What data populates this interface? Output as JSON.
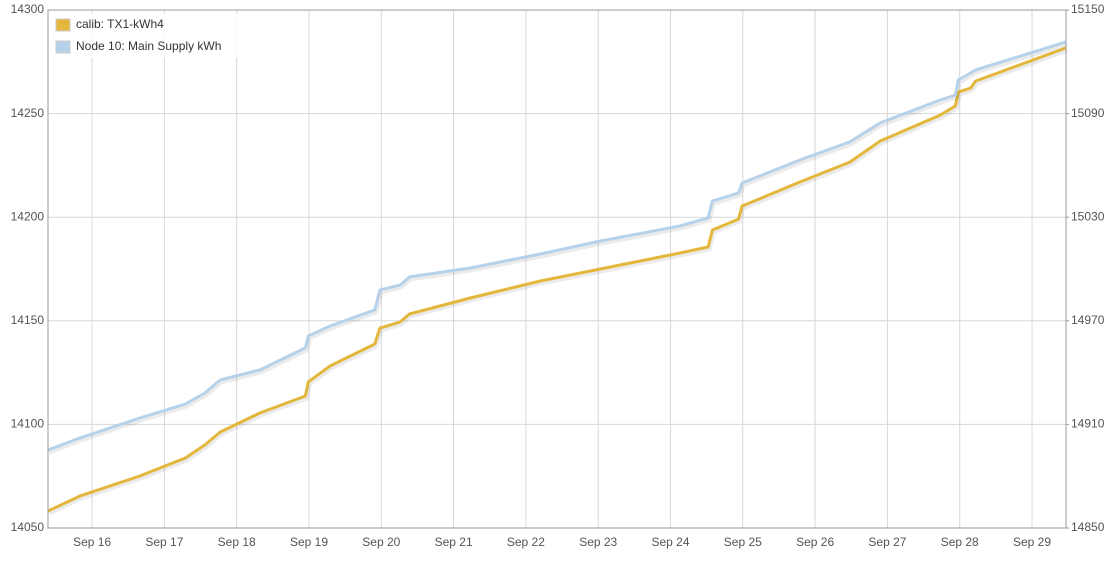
{
  "chart_data": {
    "type": "line",
    "x": [
      15.39,
      15.83,
      16.66,
      17.29,
      17.56,
      17.77,
      18.32,
      18.95,
      18.99,
      19.29,
      19.91,
      19.98,
      20.26,
      20.39,
      21.23,
      22.2,
      23.03,
      24.13,
      24.52,
      24.58,
      24.94,
      24.99,
      25.79,
      26.48,
      26.9,
      27.73,
      27.94,
      27.98,
      28.15,
      28.22,
      29.47
    ],
    "series": [
      {
        "name": "calib: TX1-kWh4",
        "color": "#e3b73c",
        "axis": "y",
        "values": [
          14058.2,
          14065.4,
          14075.1,
          14083.8,
          14090.1,
          14096.3,
          14105.5,
          14113.7,
          14120.5,
          14128.2,
          14138.8,
          14146.5,
          14149.4,
          14153.3,
          14161.0,
          14169.2,
          14175.0,
          14182.7,
          14185.6,
          14193.8,
          14199.1,
          14205.4,
          14217.0,
          14226.6,
          14236.8,
          14249.3,
          14253.7,
          14260.4,
          14262.3,
          14265.7,
          14281.7
        ]
      },
      {
        "name": "Node 10: Main Supply kWh",
        "color": "#b6d2ea",
        "axis": "y2",
        "values": [
          14895.2,
          14902.1,
          14913.7,
          14921.8,
          14928.2,
          14935.7,
          14941.5,
          14954.3,
          14961.2,
          14967.0,
          14976.3,
          14987.9,
          14990.7,
          14995.4,
          15000.6,
          15008.7,
          15016.2,
          15024.9,
          15029.6,
          15039.4,
          15044.0,
          15049.8,
          15063.1,
          15073.6,
          15084.6,
          15097.9,
          15100.8,
          15109.5,
          15113.5,
          15115.3,
          15131.5
        ]
      }
    ],
    "xlim": [
      15.39,
      29.47
    ],
    "xticks": [
      {
        "value": 16,
        "label": "Sep 16"
      },
      {
        "value": 17,
        "label": "Sep 17"
      },
      {
        "value": 18,
        "label": "Sep 18"
      },
      {
        "value": 19,
        "label": "Sep 19"
      },
      {
        "value": 20,
        "label": "Sep 20"
      },
      {
        "value": 21,
        "label": "Sep 21"
      },
      {
        "value": 22,
        "label": "Sep 22"
      },
      {
        "value": 23,
        "label": "Sep 23"
      },
      {
        "value": 24,
        "label": "Sep 24"
      },
      {
        "value": 25,
        "label": "Sep 25"
      },
      {
        "value": 26,
        "label": "Sep 26"
      },
      {
        "value": 27,
        "label": "Sep 27"
      },
      {
        "value": 28,
        "label": "Sep 28"
      },
      {
        "value": 29,
        "label": "Sep 29"
      }
    ],
    "ylim": [
      14050,
      14300
    ],
    "yticks": [
      14050,
      14100,
      14150,
      14200,
      14250,
      14300
    ],
    "y2lim": [
      14850,
      15150
    ],
    "y2ticks": [
      14850,
      14910,
      14970,
      15030,
      15090,
      15150
    ],
    "grid": true,
    "legend": "top-left"
  }
}
